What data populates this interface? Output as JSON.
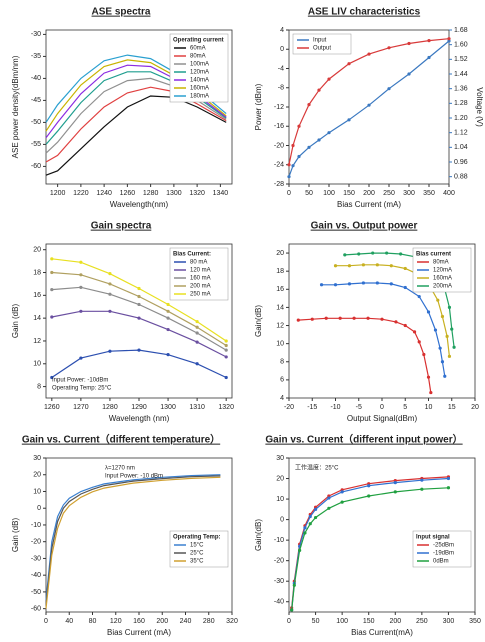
{
  "chart_data": [
    {
      "type": "line",
      "title": "ASE spectra",
      "xlabel": "Wavelength(nm)",
      "ylabel": "ASE power density(dBm/nm)",
      "markers": false,
      "legend": "upper right",
      "legend_title": "Operating current",
      "xlim": [
        1190,
        1350
      ],
      "xticks": [
        1200,
        1220,
        1240,
        1260,
        1280,
        1300,
        1320,
        1340
      ],
      "ylim": [
        -64,
        -29
      ],
      "yticks": [
        -60,
        -55,
        -50,
        -45,
        -40,
        -35,
        -30
      ],
      "series": [
        {
          "name": "60mA",
          "color": "#111111",
          "x": [
            1190,
            1200,
            1220,
            1240,
            1260,
            1280,
            1300,
            1320,
            1345
          ],
          "values": [
            -62,
            -61,
            -56,
            -51,
            -46.5,
            -44,
            -44.3,
            -46.5,
            -50
          ]
        },
        {
          "name": "80mA",
          "color": "#e04040",
          "x": [
            1190,
            1200,
            1220,
            1240,
            1260,
            1280,
            1300,
            1320,
            1345
          ],
          "values": [
            -59,
            -57.5,
            -51.5,
            -46.5,
            -43.3,
            -42,
            -43,
            -45.8,
            -49.6
          ]
        },
        {
          "name": "100mA",
          "color": "#909090",
          "x": [
            1190,
            1200,
            1220,
            1240,
            1260,
            1280,
            1300,
            1320,
            1345
          ],
          "values": [
            -57,
            -54.5,
            -48,
            -43,
            -40.5,
            -40,
            -41.8,
            -45,
            -49.3
          ]
        },
        {
          "name": "120mA",
          "color": "#1f9e8f",
          "x": [
            1190,
            1200,
            1220,
            1240,
            1260,
            1280,
            1300,
            1320,
            1345
          ],
          "values": [
            -55,
            -52,
            -45.5,
            -40.5,
            -38.5,
            -38.5,
            -40.8,
            -44.3,
            -49
          ]
        },
        {
          "name": "140mA",
          "color": "#8a2be2",
          "x": [
            1190,
            1200,
            1220,
            1240,
            1260,
            1280,
            1300,
            1320,
            1345
          ],
          "values": [
            -53.5,
            -50,
            -43.5,
            -38.8,
            -37,
            -37.3,
            -40,
            -43.8,
            -48.8
          ]
        },
        {
          "name": "160mA",
          "color": "#c8b400",
          "x": [
            1190,
            1200,
            1220,
            1240,
            1260,
            1280,
            1300,
            1320,
            1345
          ],
          "values": [
            -52,
            -48,
            -41.5,
            -37.3,
            -35.8,
            -36.4,
            -39.3,
            -43.2,
            -48.5
          ]
        },
        {
          "name": "180mA",
          "color": "#2aa0d0",
          "x": [
            1190,
            1200,
            1220,
            1240,
            1260,
            1280,
            1300,
            1320,
            1345
          ],
          "values": [
            -50,
            -46,
            -40,
            -36,
            -34.7,
            -35.5,
            -38.5,
            -42.5,
            -48
          ]
        }
      ]
    },
    {
      "type": "line",
      "title": "ASE LIV characteristics",
      "xlabel": "Bias Current (mA)",
      "ylabel": "Power (dBm)",
      "y2label": "Voltage (V)",
      "markers": true,
      "legend": "upper left",
      "xlim": [
        0,
        400
      ],
      "xticks": [
        0,
        50,
        100,
        150,
        200,
        250,
        300,
        350,
        400
      ],
      "ylim": [
        -28,
        4
      ],
      "yticks": [
        -28,
        -24,
        -20,
        -16,
        -12,
        -8,
        -4,
        0,
        4
      ],
      "y2lim": [
        0.84,
        1.68
      ],
      "y2ticks": [
        0.88,
        0.96,
        1.04,
        1.12,
        {
          "value": 1.2,
          "label": "1.20"
        },
        1.28,
        1.36,
        1.44,
        1.52,
        {
          "value": 1.6,
          "label": "1.60"
        },
        1.68
      ],
      "series": [
        {
          "name": "Input",
          "color": "#3a78c0",
          "axis": "y2",
          "x": [
            0,
            10,
            25,
            50,
            75,
            100,
            150,
            200,
            250,
            300,
            350,
            400
          ],
          "values": [
            0.88,
            0.94,
            0.99,
            1.04,
            1.08,
            1.12,
            1.19,
            1.27,
            1.36,
            1.44,
            1.53,
            1.62
          ]
        },
        {
          "name": "Output",
          "color": "#d83a3a",
          "x": [
            0,
            10,
            25,
            50,
            75,
            100,
            150,
            200,
            250,
            300,
            350,
            400
          ],
          "values": [
            -24,
            -20,
            -16,
            -11.5,
            -8.5,
            -6.2,
            -3,
            -1,
            0.3,
            1.2,
            1.8,
            2.2
          ]
        }
      ]
    },
    {
      "type": "line",
      "title": "Gain spectra",
      "xlabel": "Wavelength (nm)",
      "ylabel": "Gain (dB)",
      "markers": true,
      "legend": "upper right",
      "legend_title": "Bias Current:",
      "annotations": [
        "Input Power: -10dBm",
        "Operating Temp: 25°C"
      ],
      "annotation_corner": "lower left",
      "xlim": [
        1258,
        1322
      ],
      "xticks": [
        1260,
        1270,
        1280,
        1290,
        1300,
        1310,
        1320
      ],
      "ylim": [
        7,
        20.5
      ],
      "yticks": [
        8,
        10,
        12,
        14,
        16,
        18,
        20
      ],
      "series": [
        {
          "name": "80 mA",
          "color": "#2c4fb0",
          "x": [
            1260,
            1270,
            1280,
            1290,
            1300,
            1310,
            1320
          ],
          "values": [
            8.8,
            10.5,
            11.1,
            11.2,
            10.8,
            10,
            8.8
          ]
        },
        {
          "name": "120 mA",
          "color": "#6a4fa0",
          "x": [
            1260,
            1270,
            1280,
            1290,
            1300,
            1310,
            1320
          ],
          "values": [
            14.1,
            14.6,
            14.6,
            14,
            13,
            11.9,
            10.6
          ]
        },
        {
          "name": "160 mA",
          "color": "#8c8c8c",
          "x": [
            1260,
            1270,
            1280,
            1290,
            1300,
            1310,
            1320
          ],
          "values": [
            16.5,
            16.7,
            16.1,
            15.2,
            14,
            12.7,
            11.2
          ]
        },
        {
          "name": "200 mA",
          "color": "#b0a060",
          "x": [
            1260,
            1270,
            1280,
            1290,
            1300,
            1310,
            1320
          ],
          "values": [
            18,
            17.8,
            17,
            15.9,
            14.6,
            13.2,
            11.6
          ]
        },
        {
          "name": "250 mA",
          "color": "#e8e020",
          "x": [
            1260,
            1270,
            1280,
            1290,
            1300,
            1310,
            1320
          ],
          "values": [
            19.2,
            18.9,
            17.9,
            16.6,
            15.2,
            13.7,
            12
          ]
        }
      ]
    },
    {
      "type": "line",
      "title": "Gain vs. Output power",
      "xlabel": "Output Signal(dBm)",
      "ylabel": "Gain(dB)",
      "markers": true,
      "legend": "upper right",
      "legend_title": "Bias current",
      "xlim": [
        -20,
        20
      ],
      "xticks": [
        -20,
        -15,
        -10,
        -5,
        0,
        5,
        10,
        15,
        20
      ],
      "ylim": [
        4,
        21
      ],
      "yticks": [
        4,
        6,
        8,
        10,
        12,
        14,
        16,
        18,
        20
      ],
      "series": [
        {
          "name": "80mA",
          "color": "#d83030",
          "x": [
            -18,
            -15,
            -12,
            -9,
            -6,
            -3,
            0,
            3,
            5,
            7,
            8,
            9,
            10,
            10.5
          ],
          "values": [
            12.6,
            12.7,
            12.8,
            12.8,
            12.8,
            12.8,
            12.7,
            12.4,
            12,
            11.3,
            10.2,
            8.8,
            6.3,
            4.6
          ]
        },
        {
          "name": "120mA",
          "color": "#3070d0",
          "x": [
            -13,
            -10,
            -7,
            -4,
            -1,
            2,
            5,
            8,
            10,
            11.5,
            12.5,
            13,
            13.5
          ],
          "values": [
            16.5,
            16.5,
            16.6,
            16.7,
            16.7,
            16.6,
            16.2,
            15.2,
            13.5,
            11.5,
            9.5,
            8,
            6.4
          ]
        },
        {
          "name": "160mA",
          "color": "#c8b020",
          "x": [
            -10,
            -7,
            -4,
            -1,
            2,
            5,
            8,
            10,
            12,
            13,
            14,
            14.5
          ],
          "values": [
            18.6,
            18.6,
            18.7,
            18.7,
            18.6,
            18.3,
            17.6,
            16.6,
            14.8,
            13,
            10.8,
            8.6
          ]
        },
        {
          "name": "200mA",
          "color": "#20a060",
          "x": [
            -8,
            -5,
            -2,
            1,
            4,
            7,
            10,
            12,
            13.5,
            14.5,
            15,
            15.5
          ],
          "values": [
            19.8,
            19.9,
            20,
            20,
            19.9,
            19.6,
            18.9,
            17.8,
            16,
            14,
            11.6,
            9.6
          ]
        }
      ]
    },
    {
      "type": "line",
      "title": "Gain vs. Current（different temperature）",
      "xlabel": "Bias Current (mA)",
      "ylabel": "Gain (dB)",
      "markers": false,
      "legend": "center right",
      "legend_title": "Operating Temp:",
      "annotations": [
        "λ=1270 nm",
        "Input Power: -10 dBm"
      ],
      "annotation_corner": "upper center",
      "xlim": [
        0,
        320
      ],
      "xticks": [
        0,
        40,
        80,
        120,
        160,
        200,
        240,
        280,
        320
      ],
      "ylim": [
        -62,
        30
      ],
      "yticks": [
        -60,
        -50,
        -40,
        -30,
        -20,
        -10,
        0,
        10,
        20,
        30
      ],
      "series": [
        {
          "name": "15°C",
          "color": "#3a80d0",
          "x": [
            0,
            10,
            20,
            30,
            40,
            60,
            80,
            100,
            150,
            200,
            250,
            300
          ],
          "values": [
            -55,
            -20,
            -5,
            2,
            6,
            10,
            12.5,
            14.5,
            17,
            18.5,
            19.5,
            20
          ]
        },
        {
          "name": "25°C",
          "color": "#555555",
          "x": [
            0,
            10,
            20,
            30,
            40,
            60,
            80,
            100,
            150,
            200,
            250,
            300
          ],
          "values": [
            -58,
            -24,
            -8,
            0,
            4,
            8.5,
            11.3,
            13.5,
            16.2,
            17.7,
            18.8,
            19.3
          ]
        },
        {
          "name": "35°C",
          "color": "#d0a030",
          "x": [
            0,
            10,
            20,
            30,
            40,
            60,
            80,
            100,
            150,
            200,
            250,
            300
          ],
          "values": [
            -60,
            -28,
            -12,
            -3,
            1.5,
            6.5,
            9.8,
            12,
            15,
            16.7,
            17.8,
            18.5
          ]
        }
      ]
    },
    {
      "type": "line",
      "title": "Gain vs. Current（different input power）",
      "xlabel": "Bias Current(mA)",
      "ylabel": "Gain(dB)",
      "markers": true,
      "legend": "center right",
      "legend_title": "Input signal",
      "annotations": [
        "工作温度：25°C"
      ],
      "annotation_corner": "upper left",
      "xlim": [
        0,
        350
      ],
      "xticks": [
        0,
        50,
        100,
        150,
        200,
        250,
        300,
        350
      ],
      "ylim": [
        -45,
        30
      ],
      "yticks": [
        -40,
        -30,
        -20,
        -10,
        0,
        10,
        20,
        30
      ],
      "series": [
        {
          "name": "-25dBm",
          "color": "#d83030",
          "x": [
            5,
            10,
            20,
            30,
            40,
            50,
            75,
            100,
            150,
            200,
            250,
            300
          ],
          "values": [
            -43,
            -30,
            -12,
            -3,
            2.5,
            6,
            11.5,
            14.5,
            17.5,
            19,
            20,
            20.8
          ]
        },
        {
          "name": "-19dBm",
          "color": "#3070d0",
          "x": [
            5,
            10,
            20,
            30,
            40,
            50,
            75,
            100,
            150,
            200,
            250,
            300
          ],
          "values": [
            -44,
            -31,
            -13,
            -4,
            1.5,
            5,
            10.5,
            13.5,
            16.5,
            18,
            19.2,
            20
          ]
        },
        {
          "name": "0dBm",
          "color": "#20a040",
          "x": [
            5,
            10,
            20,
            30,
            40,
            50,
            75,
            100,
            150,
            200,
            250,
            300
          ],
          "values": [
            -44,
            -32,
            -15,
            -6.5,
            -2,
            1,
            5.5,
            8.5,
            11.5,
            13.5,
            14.8,
            15.5
          ]
        }
      ]
    }
  ]
}
